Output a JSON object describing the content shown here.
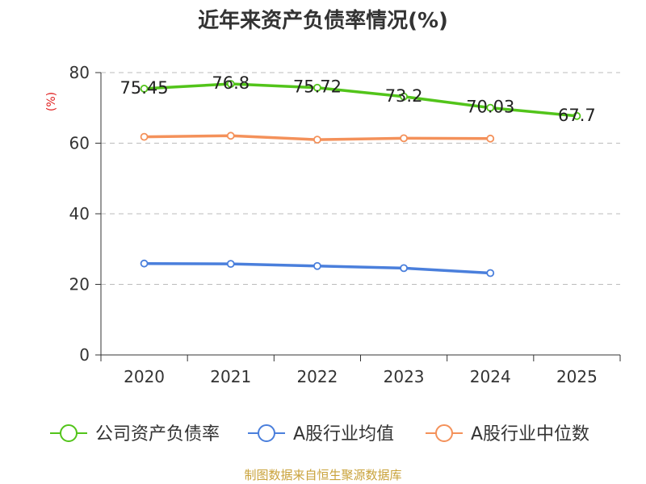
{
  "chart_data": {
    "type": "line",
    "title": "近年来资产负债率情况(%)",
    "ylabel": "(%)",
    "x": [
      "2020",
      "2021",
      "2022",
      "2023",
      "2024",
      "2025"
    ],
    "ylim": [
      0,
      80
    ],
    "yticks": [
      0,
      20,
      40,
      60,
      80
    ],
    "grid": true,
    "legend_position": "bottom",
    "series": [
      {
        "name": "公司资产负债率",
        "color": "#52c41a",
        "values": [
          75.45,
          76.8,
          75.72,
          73.2,
          70.03,
          67.7
        ],
        "labels": [
          "75.45",
          "76.8",
          "75.72",
          "73.2",
          "70.03",
          "67.7"
        ]
      },
      {
        "name": "A股行业均值",
        "color": "#4a7fdc",
        "values": [
          25.9,
          25.8,
          25.2,
          24.6,
          23.2,
          null
        ]
      },
      {
        "name": "A股行业中位数",
        "color": "#f4915a",
        "values": [
          61.8,
          62.1,
          61.0,
          61.4,
          61.3,
          null
        ]
      }
    ]
  },
  "source": "制图数据来自恒生聚源数据库"
}
